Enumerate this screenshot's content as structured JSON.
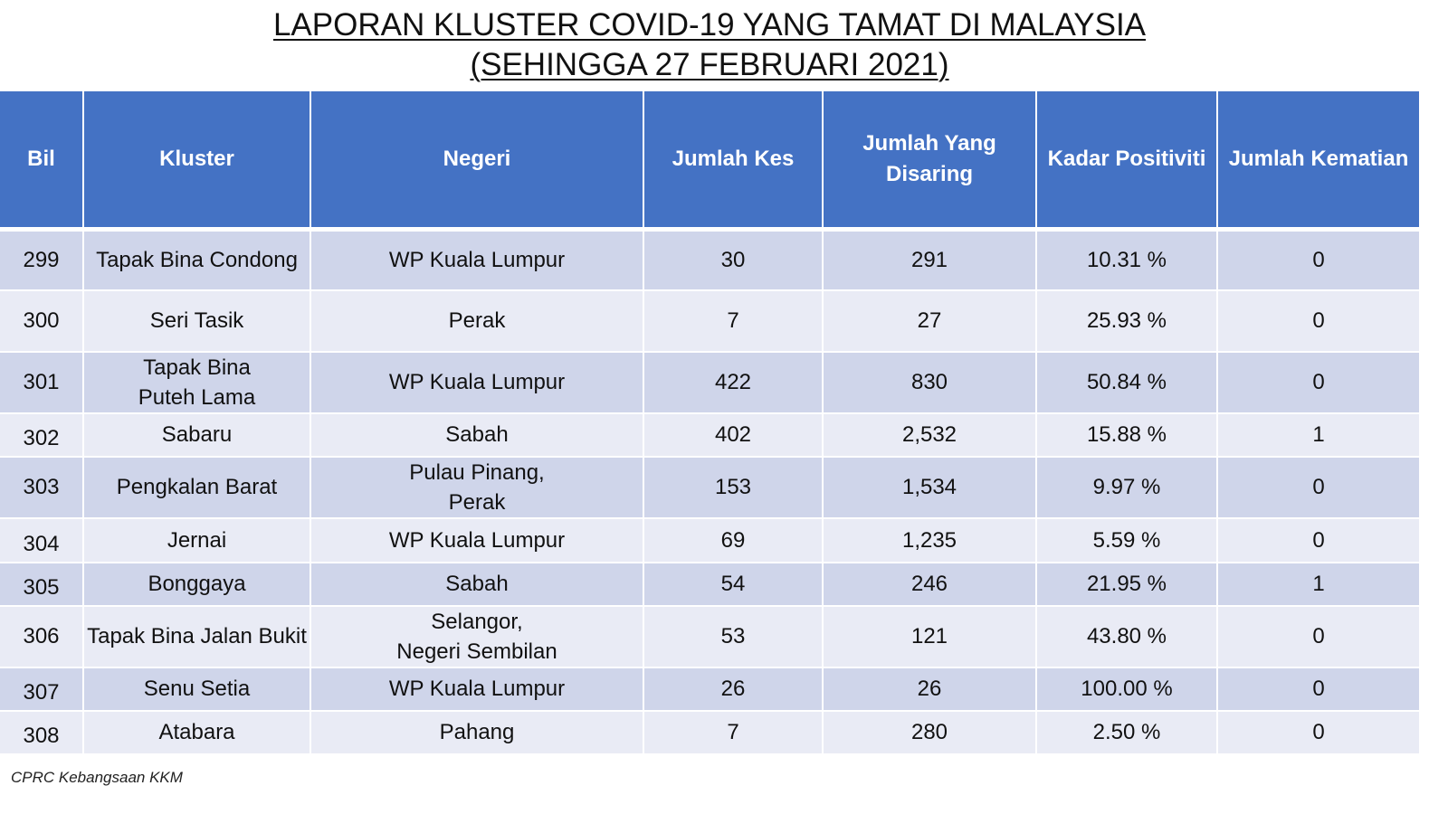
{
  "title": {
    "line1": "LAPORAN KLUSTER COVID-19 YANG TAMAT DI MALAYSIA",
    "line2": "(SEHINGGA  27 FEBRUARI 2021)"
  },
  "table": {
    "headers": {
      "bil": "Bil",
      "kluster": "Kluster",
      "negeri": "Negeri",
      "jumlah_kes": "Jumlah Kes",
      "jumlah_disaring_1": "Jumlah Yang",
      "jumlah_disaring_2": "Disaring",
      "kadar_positiviti": "Kadar Positiviti",
      "jumlah_kematian": "Jumlah Kematian"
    },
    "rows": [
      {
        "bil": "299",
        "kluster_1": "Tapak Bina Condong",
        "kluster_2": "",
        "negeri_1": "WP Kuala Lumpur",
        "negeri_2": "",
        "kes": "30",
        "disaring": "291",
        "positiviti": "10.31 %",
        "kematian": "0"
      },
      {
        "bil": "300",
        "kluster_1": "Seri Tasik",
        "kluster_2": "",
        "negeri_1": "Perak",
        "negeri_2": "",
        "kes": "7",
        "disaring": "27",
        "positiviti": "25.93 %",
        "kematian": "0"
      },
      {
        "bil": "301",
        "kluster_1": "Tapak Bina",
        "kluster_2": "Puteh Lama",
        "negeri_1": "WP Kuala Lumpur",
        "negeri_2": "",
        "kes": "422",
        "disaring": "830",
        "positiviti": "50.84 %",
        "kematian": "0"
      },
      {
        "bil": "302",
        "kluster_1": "Sabaru",
        "kluster_2": "",
        "negeri_1": "Sabah",
        "negeri_2": "",
        "kes": "402",
        "disaring": "2,532",
        "positiviti": "15.88 %",
        "kematian": "1"
      },
      {
        "bil": "303",
        "kluster_1": "Pengkalan Barat",
        "kluster_2": "",
        "negeri_1": "Pulau Pinang,",
        "negeri_2": "Perak",
        "kes": "153",
        "disaring": "1,534",
        "positiviti": "9.97 %",
        "kematian": "0"
      },
      {
        "bil": "304",
        "kluster_1": "Jernai",
        "kluster_2": "",
        "negeri_1": "WP Kuala Lumpur",
        "negeri_2": "",
        "kes": "69",
        "disaring": "1,235",
        "positiviti": "5.59 %",
        "kematian": "0"
      },
      {
        "bil": "305",
        "kluster_1": "Bonggaya",
        "kluster_2": "",
        "negeri_1": "Sabah",
        "negeri_2": "",
        "kes": "54",
        "disaring": "246",
        "positiviti": "21.95 %",
        "kematian": "1"
      },
      {
        "bil": "306",
        "kluster_1": "Tapak Bina Jalan Bukit",
        "kluster_2": "",
        "negeri_1": "Selangor,",
        "negeri_2": "Negeri Sembilan",
        "kes": "53",
        "disaring": "121",
        "positiviti": "43.80 %",
        "kematian": "0"
      },
      {
        "bil": "307",
        "kluster_1": "Senu Setia",
        "kluster_2": "",
        "negeri_1": "WP Kuala Lumpur",
        "negeri_2": "",
        "kes": "26",
        "disaring": "26",
        "positiviti": "100.00 %",
        "kematian": "0"
      },
      {
        "bil": "308",
        "kluster_1": "Atabara",
        "kluster_2": "",
        "negeri_1": "Pahang",
        "negeri_2": "",
        "kes": "7",
        "disaring": "280",
        "positiviti": "2.50 %",
        "kematian": "0"
      }
    ]
  },
  "footer": "CPRC Kebangsaan KKM",
  "colors": {
    "header_bg": "#4472c4",
    "row_odd": "#cfd5ea",
    "row_even": "#e9ebf5"
  }
}
